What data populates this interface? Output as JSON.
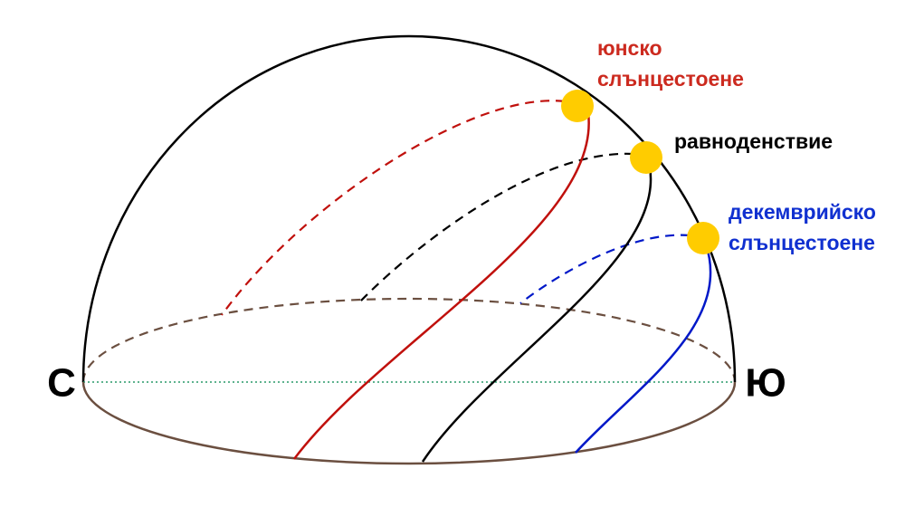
{
  "labels": {
    "north": "С",
    "south": "Ю",
    "june": [
      "юнско",
      "слънцестоене"
    ],
    "equinox": [
      "равноденствие"
    ],
    "december": [
      "декемврийско",
      "слънцестоене"
    ]
  }
}
